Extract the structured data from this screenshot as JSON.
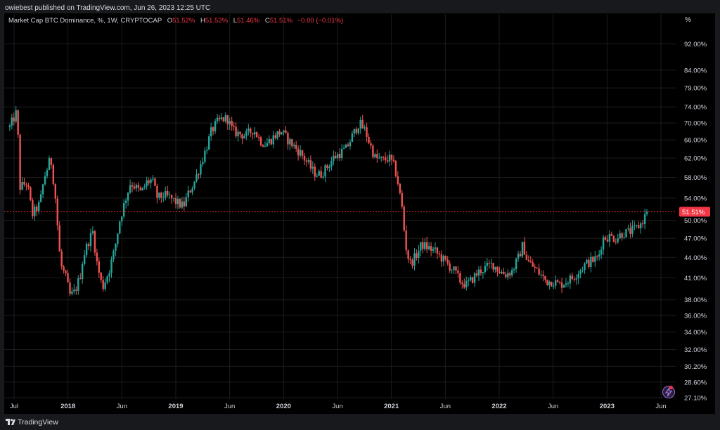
{
  "header": {
    "publisher_text": "owiebest published on TradingView.com, Jun 26, 2023 12:25 UTC"
  },
  "legend": {
    "symbol": "Market Cap BTC Dominance, %, 1W, CRYPTOCAP",
    "o_label": "O",
    "o_value": "51.52%",
    "h_label": "H",
    "h_value": "51.52%",
    "l_label": "L",
    "l_value": "51.46%",
    "c_label": "C",
    "c_value": "51.51%",
    "change": "−0.00 (−0.01%)"
  },
  "y_axis": {
    "unit": "%",
    "current_label": "51.51%"
  },
  "footer": {
    "brand": "TradingView"
  },
  "colors": {
    "up": "#26a69a",
    "down": "#ef5350",
    "price_line": "#f23645",
    "grid": "#1c1c1f"
  },
  "icons": {
    "logo": "tradingview-logo-icon",
    "alert": "lightning-bolt-icon"
  },
  "chart_data": {
    "type": "candlestick",
    "title": "Market Cap BTC Dominance, %, 1W, CRYPTOCAP",
    "y_scale": "log",
    "ylim": [
      27.1,
      100
    ],
    "last_price": 51.51,
    "y_ticks": [
      {
        "v": 92.0,
        "label": "92.00%"
      },
      {
        "v": 84.0,
        "label": "84.00%"
      },
      {
        "v": 79.0,
        "label": "79.00%"
      },
      {
        "v": 74.0,
        "label": "74.00%"
      },
      {
        "v": 70.0,
        "label": "70.00%"
      },
      {
        "v": 66.0,
        "label": "66.00%"
      },
      {
        "v": 62.0,
        "label": "62.00%"
      },
      {
        "v": 58.0,
        "label": "58.00%"
      },
      {
        "v": 54.0,
        "label": "54.00%"
      },
      {
        "v": 50.0,
        "label": "50.00%"
      },
      {
        "v": 47.0,
        "label": "47.00%"
      },
      {
        "v": 44.0,
        "label": "44.00%"
      },
      {
        "v": 41.0,
        "label": "41.00%"
      },
      {
        "v": 38.0,
        "label": "38.00%"
      },
      {
        "v": 36.0,
        "label": "36.00%"
      },
      {
        "v": 34.0,
        "label": "34.00%"
      },
      {
        "v": 32.0,
        "label": "32.00%"
      },
      {
        "v": 30.2,
        "label": "30.20%"
      },
      {
        "v": 28.6,
        "label": "28.60%"
      },
      {
        "v": 27.1,
        "label": "27.10%"
      }
    ],
    "x_ticks": [
      {
        "t": 0.0,
        "label": "Jul",
        "bold": false
      },
      {
        "t": 0.5,
        "label": "2018",
        "bold": true
      },
      {
        "t": 1.0,
        "label": "Jun",
        "bold": false
      },
      {
        "t": 1.5,
        "label": "2019",
        "bold": true
      },
      {
        "t": 2.0,
        "label": "Jun",
        "bold": false
      },
      {
        "t": 2.5,
        "label": "2020",
        "bold": true
      },
      {
        "t": 3.0,
        "label": "Jun",
        "bold": false
      },
      {
        "t": 3.5,
        "label": "2021",
        "bold": true
      },
      {
        "t": 4.0,
        "label": "Jun",
        "bold": false
      },
      {
        "t": 4.5,
        "label": "2022",
        "bold": true
      },
      {
        "t": 5.0,
        "label": "Jun",
        "bold": false
      },
      {
        "t": 5.5,
        "label": "2023",
        "bold": true
      },
      {
        "t": 6.0,
        "label": "Jun",
        "bold": false
      }
    ],
    "x_time_range": [
      -0.04,
      6.08
    ],
    "close_anchors": [
      [
        -0.04,
        69.0
      ],
      [
        0.03,
        73.0
      ],
      [
        0.05,
        56.0
      ],
      [
        0.12,
        57.0
      ],
      [
        0.17,
        51.0
      ],
      [
        0.24,
        53.0
      ],
      [
        0.28,
        58.0
      ],
      [
        0.34,
        62.0
      ],
      [
        0.38,
        55.0
      ],
      [
        0.43,
        43.0
      ],
      [
        0.48,
        41.0
      ],
      [
        0.52,
        38.5
      ],
      [
        0.56,
        39.0
      ],
      [
        0.61,
        41.0
      ],
      [
        0.64,
        44.0
      ],
      [
        0.69,
        46.5
      ],
      [
        0.73,
        48.0
      ],
      [
        0.77,
        43.0
      ],
      [
        0.82,
        39.6
      ],
      [
        0.88,
        42.0
      ],
      [
        0.93,
        45.0
      ],
      [
        0.98,
        50.0
      ],
      [
        1.03,
        53.5
      ],
      [
        1.08,
        57.0
      ],
      [
        1.13,
        56.0
      ],
      [
        1.18,
        55.0
      ],
      [
        1.23,
        57.0
      ],
      [
        1.28,
        57.5
      ],
      [
        1.33,
        54.0
      ],
      [
        1.39,
        54.5
      ],
      [
        1.45,
        54.0
      ],
      [
        1.52,
        53.0
      ],
      [
        1.57,
        52.5
      ],
      [
        1.62,
        55.0
      ],
      [
        1.67,
        57.0
      ],
      [
        1.72,
        60.0
      ],
      [
        1.78,
        64.0
      ],
      [
        1.83,
        68.0
      ],
      [
        1.88,
        70.0
      ],
      [
        1.93,
        71.0
      ],
      [
        1.98,
        71.0
      ],
      [
        2.03,
        68.0
      ],
      [
        2.08,
        67.5
      ],
      [
        2.15,
        67.0
      ],
      [
        2.22,
        68.5
      ],
      [
        2.28,
        66.0
      ],
      [
        2.33,
        65.0
      ],
      [
        2.38,
        66.0
      ],
      [
        2.42,
        67.0
      ],
      [
        2.48,
        68.0
      ],
      [
        2.54,
        66.0
      ],
      [
        2.6,
        64.5
      ],
      [
        2.66,
        63.0
      ],
      [
        2.72,
        61.0
      ],
      [
        2.78,
        59.0
      ],
      [
        2.84,
        58.5
      ],
      [
        2.9,
        60.0
      ],
      [
        2.96,
        62.0
      ],
      [
        3.02,
        63.0
      ],
      [
        3.08,
        64.0
      ],
      [
        3.14,
        67.0
      ],
      [
        3.2,
        70.0
      ],
      [
        3.26,
        68.0
      ],
      [
        3.3,
        65.0
      ],
      [
        3.35,
        62.0
      ],
      [
        3.42,
        61.5
      ],
      [
        3.48,
        62.0
      ],
      [
        3.53,
        60.0
      ],
      [
        3.56,
        57.0
      ],
      [
        3.6,
        52.0
      ],
      [
        3.63,
        46.0
      ],
      [
        3.67,
        43.0
      ],
      [
        3.72,
        44.0
      ],
      [
        3.78,
        46.0
      ],
      [
        3.84,
        45.5
      ],
      [
        3.9,
        45.0
      ],
      [
        3.96,
        44.0
      ],
      [
        4.02,
        43.0
      ],
      [
        4.08,
        42.0
      ],
      [
        4.14,
        40.5
      ],
      [
        4.2,
        40.0
      ],
      [
        4.26,
        41.0
      ],
      [
        4.32,
        42.0
      ],
      [
        4.38,
        42.5
      ],
      [
        4.44,
        43.0
      ],
      [
        4.5,
        42.0
      ],
      [
        4.56,
        41.5
      ],
      [
        4.62,
        42.0
      ],
      [
        4.68,
        44.0
      ],
      [
        4.72,
        46.0
      ],
      [
        4.76,
        43.5
      ],
      [
        4.82,
        42.5
      ],
      [
        4.88,
        41.5
      ],
      [
        4.94,
        40.5
      ],
      [
        5.0,
        40.5
      ],
      [
        5.06,
        40.0
      ],
      [
        5.12,
        40.5
      ],
      [
        5.18,
        41.0
      ],
      [
        5.24,
        42.0
      ],
      [
        5.3,
        43.0
      ],
      [
        5.36,
        43.5
      ],
      [
        5.42,
        44.0
      ],
      [
        5.46,
        47.0
      ],
      [
        5.52,
        47.3
      ],
      [
        5.58,
        47.0
      ],
      [
        5.64,
        47.8
      ],
      [
        5.7,
        48.0
      ],
      [
        5.76,
        48.5
      ],
      [
        5.82,
        49.5
      ],
      [
        5.87,
        51.5
      ]
    ]
  }
}
